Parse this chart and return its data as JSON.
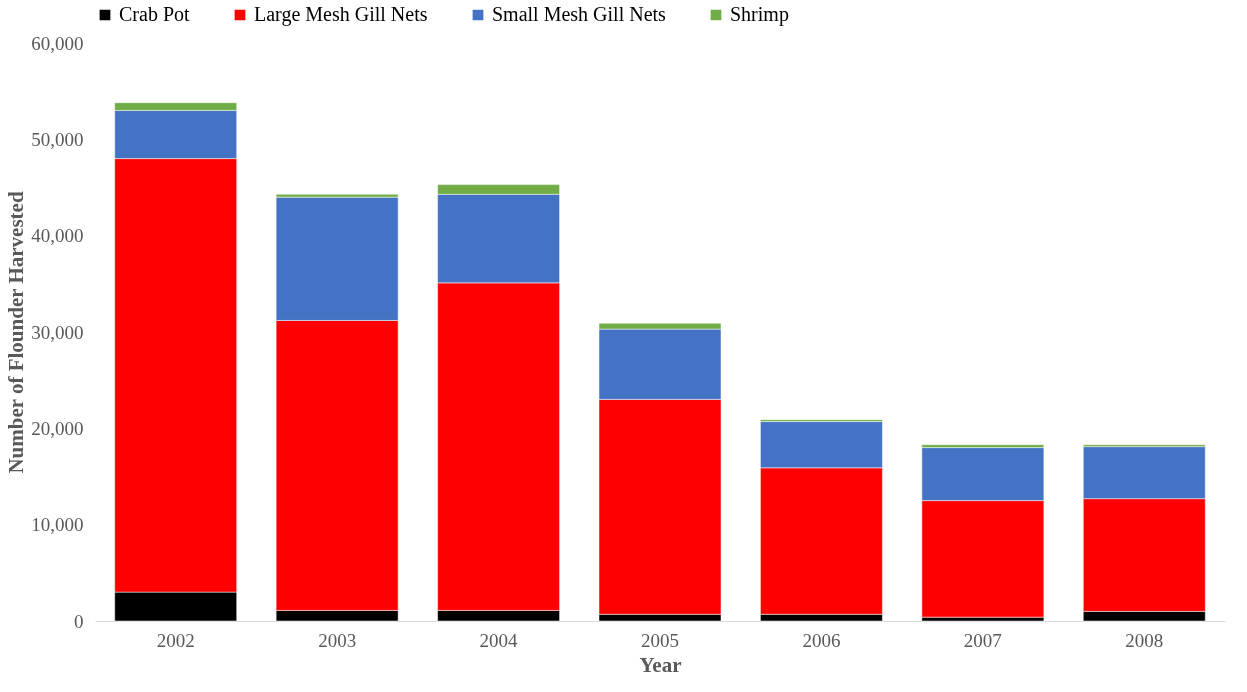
{
  "chart_data": {
    "type": "bar",
    "stacked": true,
    "xlabel": "Year",
    "ylabel": "Number of Flounder Harvested",
    "categories": [
      "2002",
      "2003",
      "2004",
      "2005",
      "2006",
      "2007",
      "2008"
    ],
    "series": [
      {
        "name": "Crab Pot",
        "color": "#000000",
        "values": [
          3000,
          1100,
          1100,
          700,
          700,
          400,
          1000
        ]
      },
      {
        "name": "Large Mesh Gill Nets",
        "color": "#ff0000",
        "values": [
          45000,
          30100,
          34000,
          22300,
          15200,
          12100,
          11700
        ]
      },
      {
        "name": "Small Mesh Gill Nets",
        "color": "#4472c4",
        "values": [
          5000,
          12800,
          9200,
          7300,
          4800,
          5500,
          5400
        ]
      },
      {
        "name": "Shrimp",
        "color": "#70ad47",
        "values": [
          800,
          300,
          1000,
          600,
          200,
          300,
          200
        ]
      }
    ],
    "ylim": [
      0,
      60000
    ],
    "yticks": [
      0,
      {
        "value": 10000,
        "label": "10,000"
      },
      {
        "value": 20000,
        "label": "20,000"
      },
      {
        "value": 30000,
        "label": "30,000"
      },
      {
        "value": 40000,
        "label": "40,000"
      },
      {
        "value": 50000,
        "label": "50,000"
      },
      {
        "value": 60000,
        "label": "60,000"
      }
    ],
    "legend": "top"
  }
}
